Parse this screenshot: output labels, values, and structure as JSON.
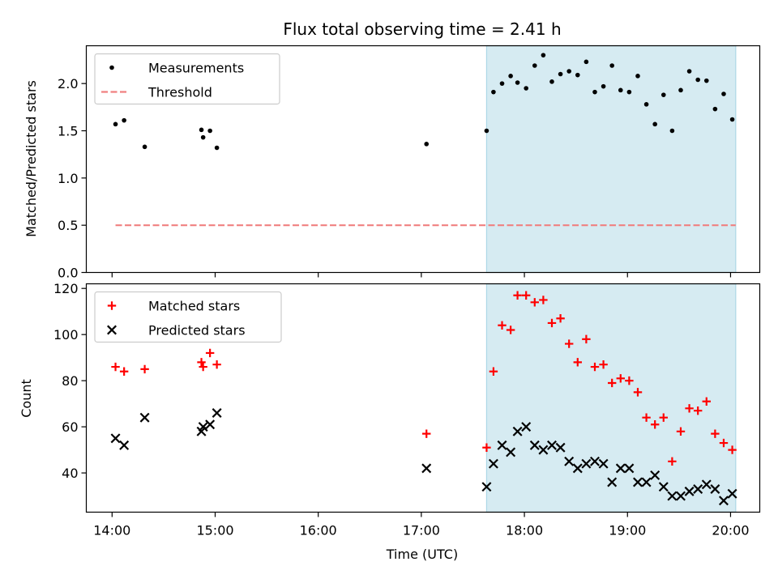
{
  "title": "Flux total observing time = 2.41 h",
  "colors": {
    "measurement": "#000000",
    "threshold": "#f08080",
    "matched": "#ff0000",
    "predicted": "#000000",
    "shade": "#add8e6"
  },
  "chart_data": [
    {
      "type": "scatter",
      "ylabel": "Matched/Predicted stars",
      "xlim": [
        "13:45",
        "20:17"
      ],
      "ylim": [
        0,
        2.4
      ],
      "yticks": [
        0.0,
        0.5,
        1.0,
        1.5,
        2.0
      ],
      "ytick_labels": [
        "0.0",
        "0.5",
        "1.0",
        "1.5",
        "2.0"
      ],
      "shaded_region": [
        "17:38",
        "20:03"
      ],
      "legend_position": "upper-left",
      "series": [
        {
          "name": "Measurements",
          "marker": "dot",
          "x": [
            "14:02",
            "14:07",
            "14:19",
            "14:52",
            "14:53",
            "14:57",
            "15:01",
            "17:03",
            "17:38",
            "17:42",
            "17:47",
            "17:52",
            "17:56",
            "18:01",
            "18:06",
            "18:11",
            "18:16",
            "18:21",
            "18:26",
            "18:31",
            "18:36",
            "18:41",
            "18:46",
            "18:51",
            "18:56",
            "19:01",
            "19:06",
            "19:11",
            "19:16",
            "19:21",
            "19:26",
            "19:31",
            "19:36",
            "19:41",
            "19:46",
            "19:51",
            "19:56",
            "20:01"
          ],
          "y": [
            1.57,
            1.61,
            1.33,
            1.51,
            1.43,
            1.5,
            1.32,
            1.36,
            1.5,
            1.91,
            2.0,
            2.08,
            2.01,
            1.95,
            2.19,
            2.3,
            2.02,
            2.1,
            2.13,
            2.09,
            2.23,
            1.91,
            1.97,
            2.19,
            1.93,
            1.91,
            2.08,
            1.78,
            1.57,
            1.88,
            1.5,
            1.93,
            2.13,
            2.04,
            2.03,
            1.73,
            1.89,
            1.62
          ]
        },
        {
          "name": "Threshold",
          "style": "dashed",
          "x": [
            "14:02",
            "20:03"
          ],
          "y": [
            0.5,
            0.5
          ]
        }
      ]
    },
    {
      "type": "scatter",
      "xlabel": "Time (UTC)",
      "ylabel": "Count",
      "xlim": [
        "13:45",
        "20:17"
      ],
      "xticks": [
        "14:00",
        "15:00",
        "16:00",
        "17:00",
        "18:00",
        "19:00",
        "20:00"
      ],
      "ylim": [
        23,
        122
      ],
      "yticks": [
        40,
        60,
        80,
        100,
        120
      ],
      "ytick_labels": [
        "40",
        "60",
        "80",
        "100",
        "120"
      ],
      "shaded_region": [
        "17:38",
        "20:03"
      ],
      "legend_position": "upper-left",
      "series": [
        {
          "name": "Matched stars",
          "marker": "plus",
          "x": [
            "14:02",
            "14:07",
            "14:19",
            "14:52",
            "14:53",
            "14:57",
            "15:01",
            "17:03",
            "17:38",
            "17:42",
            "17:47",
            "17:52",
            "17:56",
            "18:01",
            "18:06",
            "18:11",
            "18:16",
            "18:21",
            "18:26",
            "18:31",
            "18:36",
            "18:41",
            "18:46",
            "18:51",
            "18:56",
            "19:01",
            "19:06",
            "19:11",
            "19:16",
            "19:21",
            "19:26",
            "19:31",
            "19:36",
            "19:41",
            "19:46",
            "19:51",
            "19:56",
            "20:01"
          ],
          "y": [
            86,
            84,
            85,
            88,
            86,
            92,
            87,
            57,
            51,
            84,
            104,
            102,
            117,
            117,
            114,
            115,
            105,
            107,
            96,
            88,
            98,
            86,
            87,
            79,
            81,
            80,
            75,
            64,
            61,
            64,
            45,
            58,
            68,
            67,
            71,
            57,
            53,
            50
          ]
        },
        {
          "name": "Predicted stars",
          "marker": "x",
          "x": [
            "14:02",
            "14:07",
            "14:19",
            "14:52",
            "14:53",
            "14:57",
            "15:01",
            "17:03",
            "17:38",
            "17:42",
            "17:47",
            "17:52",
            "17:56",
            "18:01",
            "18:06",
            "18:11",
            "18:16",
            "18:21",
            "18:26",
            "18:31",
            "18:36",
            "18:41",
            "18:46",
            "18:51",
            "18:56",
            "19:01",
            "19:06",
            "19:11",
            "19:16",
            "19:21",
            "19:26",
            "19:31",
            "19:36",
            "19:41",
            "19:46",
            "19:51",
            "19:56",
            "20:01"
          ],
          "y": [
            55,
            52,
            64,
            58,
            60,
            61,
            66,
            42,
            34,
            44,
            52,
            49,
            58,
            60,
            52,
            50,
            52,
            51,
            45,
            42,
            44,
            45,
            44,
            36,
            42,
            42,
            36,
            36,
            39,
            34,
            30,
            30,
            32,
            33,
            35,
            33,
            28,
            31
          ]
        }
      ]
    }
  ]
}
